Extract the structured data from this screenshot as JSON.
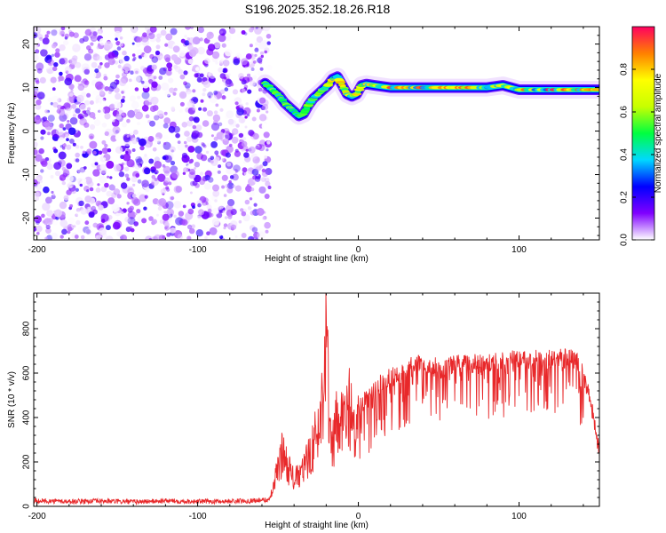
{
  "title": "S196.2025.352.18.26.R18",
  "chart_data": [
    {
      "type": "heatmap",
      "name": "spectrogram",
      "xlabel": "Height of straight line (km)",
      "ylabel": "Frequency (Hz)",
      "xlim": [
        -202,
        150
      ],
      "ylim": [
        -25,
        24
      ],
      "xticks": [
        -200,
        -100,
        0,
        100
      ],
      "xtick_labels": [
        "-200",
        "-100",
        "0",
        "100"
      ],
      "yticks": [
        -20,
        -10,
        0,
        10,
        20
      ],
      "ytick_labels": [
        "-20",
        "-10",
        "0",
        "10",
        "20"
      ],
      "noise_region_x": [
        -202,
        -55
      ],
      "signal_track": {
        "x": [
          -58,
          -55,
          -52,
          -49,
          -46,
          -43,
          -40,
          -37,
          -34,
          -31,
          -28,
          -25,
          -22,
          -19,
          -16,
          -13,
          -10,
          -7,
          -4,
          -1,
          2,
          5,
          10,
          20,
          30,
          40,
          50,
          60,
          70,
          80,
          90,
          100,
          110,
          120,
          130,
          140,
          150
        ],
        "y": [
          11,
          10,
          9,
          8,
          6.5,
          5.5,
          4.5,
          3.5,
          4,
          6,
          7.5,
          8.5,
          9.5,
          10.5,
          12,
          12.5,
          10.5,
          8.5,
          8,
          8.5,
          10.5,
          10.8,
          10.5,
          10,
          10,
          10,
          10,
          10,
          10,
          10,
          10.5,
          9.5,
          9.5,
          9.5,
          9.5,
          9.5,
          9.5
        ]
      },
      "colorbar": {
        "label": "Normalized spectral amplitude",
        "range": [
          0,
          1
        ],
        "ticks": [
          0,
          0.2,
          0.4,
          0.6,
          0.8
        ],
        "tick_labels": [
          "0.0",
          "0.2",
          "0.4",
          "0.6",
          "0.8"
        ],
        "colormap": [
          "#ffffff",
          "#8000ff",
          "#0000ff",
          "#00d8ff",
          "#00ff40",
          "#c8ff00",
          "#ffff00",
          "#ff8000",
          "#ff0060"
        ]
      }
    },
    {
      "type": "line",
      "name": "snr",
      "xlabel": "Height of straight line (km)",
      "ylabel": "SNR (10 * v/v)",
      "xlim": [
        -202,
        150
      ],
      "ylim": [
        0,
        960
      ],
      "xticks": [
        -200,
        -100,
        0,
        100
      ],
      "xtick_labels": [
        "-200",
        "-100",
        "0",
        "100"
      ],
      "yticks": [
        0,
        200,
        400,
        600,
        800
      ],
      "ytick_labels": [
        "0",
        "200",
        "400",
        "600",
        "800"
      ],
      "color": "#e8282a",
      "x": [
        -202,
        -180,
        -160,
        -140,
        -120,
        -100,
        -80,
        -65,
        -55,
        -47,
        -44,
        -40,
        -36,
        -32,
        -28,
        -24,
        -22,
        -20,
        -19,
        -18,
        -16,
        -14,
        -12,
        -10,
        -8,
        -6,
        -4,
        -2,
        0,
        5,
        10,
        15,
        20,
        25,
        30,
        35,
        40,
        50,
        60,
        70,
        80,
        90,
        100,
        110,
        120,
        130,
        135,
        140,
        145,
        150
      ],
      "y": [
        25,
        22,
        24,
        20,
        25,
        22,
        23,
        26,
        30,
        250,
        180,
        120,
        140,
        200,
        280,
        360,
        520,
        940,
        600,
        300,
        250,
        380,
        300,
        420,
        350,
        480,
        390,
        280,
        440,
        480,
        520,
        560,
        580,
        600,
        620,
        640,
        650,
        620,
        640,
        640,
        650,
        660,
        660,
        660,
        665,
        670,
        660,
        600,
        450,
        240
      ]
    }
  ]
}
